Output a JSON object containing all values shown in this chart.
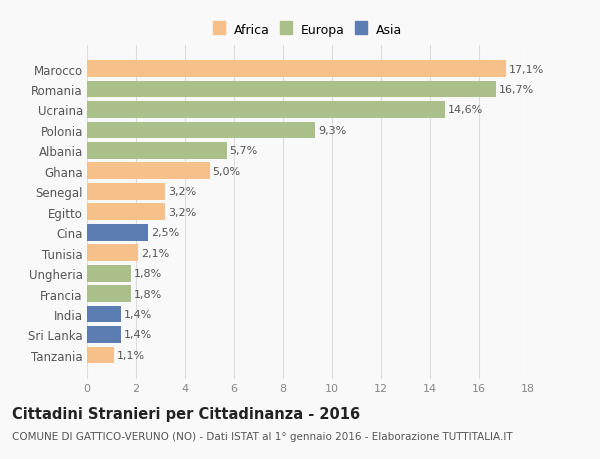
{
  "countries": [
    "Marocco",
    "Romania",
    "Ucraina",
    "Polonia",
    "Albania",
    "Ghana",
    "Senegal",
    "Egitto",
    "Cina",
    "Tunisia",
    "Ungheria",
    "Francia",
    "India",
    "Sri Lanka",
    "Tanzania"
  ],
  "values": [
    17.1,
    16.7,
    14.6,
    9.3,
    5.7,
    5.0,
    3.2,
    3.2,
    2.5,
    2.1,
    1.8,
    1.8,
    1.4,
    1.4,
    1.1
  ],
  "labels": [
    "17,1%",
    "16,7%",
    "14,6%",
    "9,3%",
    "5,7%",
    "5,0%",
    "3,2%",
    "3,2%",
    "2,5%",
    "2,1%",
    "1,8%",
    "1,8%",
    "1,4%",
    "1,4%",
    "1,1%"
  ],
  "continents": [
    "Africa",
    "Europa",
    "Europa",
    "Europa",
    "Europa",
    "Africa",
    "Africa",
    "Africa",
    "Asia",
    "Africa",
    "Europa",
    "Europa",
    "Asia",
    "Asia",
    "Africa"
  ],
  "colors": {
    "Africa": "#F5C08A",
    "Europa": "#AABF8A",
    "Asia": "#5B7DB1"
  },
  "xlim": [
    0,
    18
  ],
  "xticks": [
    0,
    2,
    4,
    6,
    8,
    10,
    12,
    14,
    16,
    18
  ],
  "title": "Cittadini Stranieri per Cittadinanza - 2016",
  "subtitle": "COMUNE DI GATTICO-VERUNO (NO) - Dati ISTAT al 1° gennaio 2016 - Elaborazione TUTTITALIA.IT",
  "background_color": "#f9f9f9",
  "bar_height": 0.82,
  "label_fontsize": 8,
  "ytick_fontsize": 8.5,
  "xtick_fontsize": 8,
  "title_fontsize": 10.5,
  "subtitle_fontsize": 7.5
}
